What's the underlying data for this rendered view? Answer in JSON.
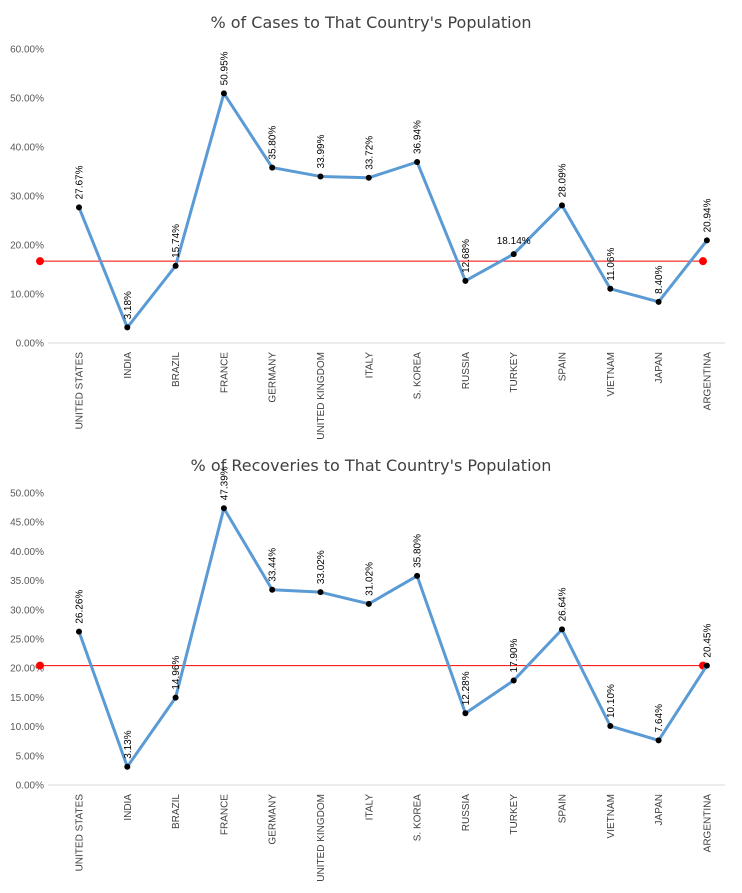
{
  "chart_data": [
    {
      "type": "line",
      "title": "% of Cases to That Country's Population",
      "categories": [
        "UNITED STATES",
        "INDIA",
        "BRAZIL",
        "FRANCE",
        "GERMANY",
        "UNITED KINGDOM",
        "ITALY",
        "S. KOREA",
        "RUSSIA",
        "TURKEY",
        "SPAIN",
        "VIETNAM",
        "JAPAN",
        "ARGENTINA"
      ],
      "values": [
        27.67,
        3.18,
        15.74,
        50.95,
        35.8,
        33.99,
        33.72,
        36.94,
        12.68,
        18.14,
        28.09,
        11.06,
        8.4,
        20.94
      ],
      "data_labels": [
        "27.67%",
        "3.18%",
        "15.74%",
        "50.95%",
        "35.80%",
        "33.99%",
        "33.72%",
        "36.94%",
        "12.68%",
        "18.14%",
        "28.09%",
        "11.06%",
        "8.40%",
        "20.94%"
      ],
      "horizontal_label_indices": [
        9
      ],
      "yticks": [
        0,
        10,
        20,
        30,
        40,
        50,
        60
      ],
      "ytick_labels": [
        "0.00%",
        "10.00%",
        "20.00%",
        "30.00%",
        "40.00%",
        "50.00%",
        "60.00%"
      ],
      "ylim": [
        0,
        60
      ],
      "reference_line": 16.7,
      "xlabel": "",
      "ylabel": "",
      "grid": false,
      "legend": false,
      "colors": {
        "line": "#5b9bd5",
        "marker": "#000000",
        "reference": "#ff0000",
        "axis": "#d9d9d9"
      }
    },
    {
      "type": "line",
      "title": "% of Recoveries to That Country's Population",
      "categories": [
        "UNITED STATES",
        "INDIA",
        "BRAZIL",
        "FRANCE",
        "GERMANY",
        "UNITED KINGDOM",
        "ITALY",
        "S. KOREA",
        "RUSSIA",
        "TURKEY",
        "SPAIN",
        "VIETNAM",
        "JAPAN",
        "ARGENTINA"
      ],
      "values": [
        26.26,
        3.13,
        14.96,
        47.39,
        33.44,
        33.02,
        31.02,
        35.8,
        12.28,
        17.9,
        26.64,
        10.1,
        7.64,
        20.45
      ],
      "data_labels": [
        "26.26%",
        "3.13%",
        "14.96%",
        "47.39%",
        "33.44%",
        "33.02%",
        "31.02%",
        "35.80%",
        "12.28%",
        "17.90%",
        "26.64%",
        "10.10%",
        "7.64%",
        "20.45%"
      ],
      "horizontal_label_indices": [],
      "yticks": [
        0,
        5,
        10,
        15,
        20,
        25,
        30,
        35,
        40,
        45,
        50
      ],
      "ytick_labels": [
        "0.00%",
        "5.00%",
        "10.00%",
        "15.00%",
        "20.00%",
        "25.00%",
        "30.00%",
        "35.00%",
        "40.00%",
        "45.00%",
        "50.00%"
      ],
      "ylim": [
        0,
        50
      ],
      "reference_line": 20.45,
      "xlabel": "",
      "ylabel": "",
      "grid": false,
      "legend": false,
      "colors": {
        "line": "#5b9bd5",
        "marker": "#000000",
        "reference": "#ff0000",
        "axis": "#d9d9d9"
      }
    }
  ]
}
